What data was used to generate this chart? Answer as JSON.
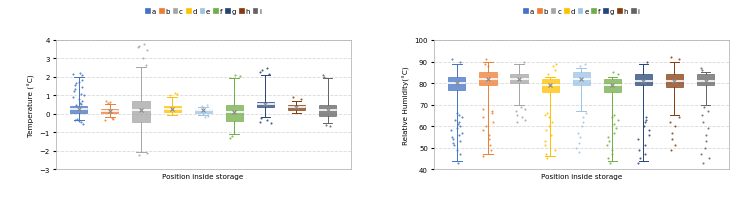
{
  "categories": [
    "a",
    "b",
    "c",
    "d",
    "e",
    "f",
    "g",
    "h",
    "i"
  ],
  "colors": [
    "#4472C4",
    "#ED7D31",
    "#A5A5A5",
    "#FFC000",
    "#9DC3E6",
    "#70AD47",
    "#264478",
    "#843C0C",
    "#636363"
  ],
  "temp": {
    "ylabel": "Temperature (°C)",
    "xlabel": "Position inside storage",
    "ylim": [
      -3,
      4
    ],
    "yticks": [
      -3,
      -2,
      -1,
      0,
      1,
      2,
      3,
      4
    ],
    "boxes": [
      {
        "q1": 0.05,
        "med": 0.25,
        "q3": 0.42,
        "whislo": -0.35,
        "whishi": 2.0,
        "mean": 0.25,
        "fliers_low": [
          -0.55,
          -0.45,
          -0.38,
          -0.32,
          -0.28
        ],
        "fliers_high": [
          2.1,
          2.15,
          2.2,
          1.85,
          1.75,
          1.65,
          1.55,
          1.45,
          1.35,
          1.25,
          1.1,
          1.0,
          0.9,
          0.8,
          0.7,
          0.6,
          0.55,
          0.5
        ]
      },
      {
        "q1": 0.05,
        "med": 0.17,
        "q3": 0.26,
        "whislo": -0.2,
        "whishi": 0.52,
        "mean": 0.17,
        "fliers_low": [
          -0.35,
          -0.28,
          -0.22
        ],
        "fliers_high": [
          0.58,
          0.65,
          0.72
        ]
      },
      {
        "q1": -0.45,
        "med": 0.18,
        "q3": 0.72,
        "whislo": -2.05,
        "whishi": 2.55,
        "mean": 0.18,
        "fliers_low": [
          -2.15,
          -2.25
        ],
        "fliers_high": [
          2.65,
          3.05,
          3.45,
          3.6,
          3.7,
          3.8
        ]
      },
      {
        "q1": 0.1,
        "med": 0.27,
        "q3": 0.43,
        "whislo": -0.08,
        "whishi": 0.92,
        "mean": 0.27,
        "fliers_low": [],
        "fliers_high": [
          1.0,
          1.08,
          1.15
        ]
      },
      {
        "q1": 0.05,
        "med": 0.18,
        "q3": 0.28,
        "whislo": -0.06,
        "whishi": 0.38,
        "mean": 0.18,
        "fliers_low": [
          -0.12,
          -0.18
        ],
        "fliers_high": [
          0.42,
          0.5
        ]
      },
      {
        "q1": -0.38,
        "med": 0.12,
        "q3": 0.48,
        "whislo": -1.1,
        "whishi": 1.92,
        "mean": 0.12,
        "fliers_low": [
          -1.2,
          -1.3
        ],
        "fliers_high": [
          2.05,
          2.12
        ]
      },
      {
        "q1": 0.35,
        "med": 0.52,
        "q3": 0.62,
        "whislo": -0.15,
        "whishi": 2.1,
        "mean": 0.52,
        "fliers_low": [
          -0.22,
          -0.32,
          -0.42,
          -0.52
        ],
        "fliers_high": [
          2.18,
          2.28,
          2.38,
          2.48
        ]
      },
      {
        "q1": 0.22,
        "med": 0.35,
        "q3": 0.48,
        "whislo": 0.02,
        "whishi": 0.72,
        "mean": 0.35,
        "fliers_low": [],
        "fliers_high": [
          0.82,
          0.92
        ]
      },
      {
        "q1": -0.12,
        "med": 0.18,
        "q3": 0.48,
        "whislo": -0.48,
        "whishi": 1.92,
        "mean": 0.18,
        "fliers_low": [
          -0.58,
          -0.68
        ],
        "fliers_high": [
          2.02,
          2.12
        ]
      }
    ]
  },
  "rh": {
    "ylabel": "Relative Humidity(°C)",
    "xlabel": "Position inside storage",
    "ylim": [
      40,
      100
    ],
    "yticks": [
      40,
      50,
      60,
      70,
      80,
      90,
      100
    ],
    "boxes": [
      {
        "q1": 77,
        "med": 80,
        "q3": 83,
        "whislo": 44,
        "whishi": 89,
        "mean": 80,
        "fliers_low": [
          43,
          47,
          49,
          51,
          52,
          53,
          54,
          55,
          56,
          57,
          58,
          59,
          60,
          61,
          62,
          63,
          64,
          65,
          66
        ],
        "fliers_high": [
          90,
          91
        ]
      },
      {
        "q1": 79,
        "med": 82,
        "q3": 85,
        "whislo": 47,
        "whishi": 90,
        "mean": 82,
        "fliers_low": [
          46,
          49,
          51,
          54,
          56,
          58,
          60,
          62,
          64,
          66,
          67,
          68
        ],
        "fliers_high": [
          91,
          88,
          89
        ]
      },
      {
        "q1": 80,
        "med": 82,
        "q3": 84,
        "whislo": 70,
        "whishi": 89,
        "mean": 82,
        "fliers_low": [
          69,
          68,
          67,
          65,
          64,
          63,
          62
        ],
        "fliers_high": [
          90
        ]
      },
      {
        "q1": 76,
        "med": 79,
        "q3": 82,
        "whislo": 46,
        "whishi": 83,
        "mean": 79,
        "fliers_low": [
          45,
          47,
          49,
          51,
          53,
          56,
          58,
          60,
          62,
          64,
          65,
          66
        ],
        "fliers_high": [
          84,
          86,
          88,
          89
        ]
      },
      {
        "q1": 79,
        "med": 82,
        "q3": 85,
        "whislo": 67,
        "whishi": 87,
        "mean": 82,
        "fliers_low": [
          66,
          64,
          62,
          60,
          57,
          55,
          52,
          50,
          48
        ],
        "fliers_high": [
          88,
          89
        ]
      },
      {
        "q1": 76,
        "med": 79,
        "q3": 82,
        "whislo": 44,
        "whishi": 83,
        "mean": 79,
        "fliers_low": [
          43,
          45,
          47,
          49,
          51,
          53,
          55,
          57,
          59,
          61,
          63,
          64,
          65
        ],
        "fliers_high": [
          84,
          85
        ]
      },
      {
        "q1": 79,
        "med": 81,
        "q3": 84,
        "whislo": 44,
        "whishi": 89,
        "mean": 81,
        "fliers_low": [
          43,
          45,
          47,
          49,
          51,
          54,
          56,
          58,
          60,
          62,
          63,
          64
        ],
        "fliers_high": [
          90
        ]
      },
      {
        "q1": 78,
        "med": 81,
        "q3": 84,
        "whislo": 65,
        "whishi": 90,
        "mean": 81,
        "fliers_low": [
          64,
          62,
          60,
          57,
          54,
          51,
          49
        ],
        "fliers_high": [
          91,
          92
        ]
      },
      {
        "q1": 79,
        "med": 81,
        "q3": 84,
        "whislo": 70,
        "whishi": 85,
        "mean": 81,
        "fliers_low": [
          69,
          67,
          65,
          62,
          59,
          56,
          53,
          50,
          47,
          45,
          43
        ],
        "fliers_high": [
          86,
          87
        ]
      }
    ]
  },
  "legend_labels": [
    "a",
    "b",
    "c",
    "d",
    "e",
    "f",
    "g",
    "h",
    "i"
  ],
  "background_color": "#FFFFFF",
  "grid_color": "#D9D9D9",
  "figsize": [
    7.4,
    2.05
  ],
  "dpi": 100
}
